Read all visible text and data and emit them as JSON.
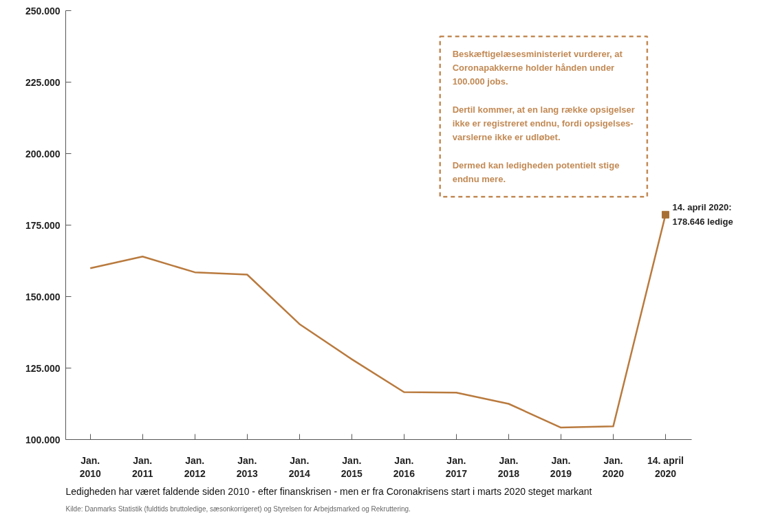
{
  "chart_data": {
    "type": "line",
    "title": "Ledigheden har været faldende siden 2010 - efter finanskrisen - men er fra Coronakrisens start i marts 2020 steget markant",
    "categories": [
      "Jan.\n2010",
      "Jan.\n2011",
      "Jan.\n2012",
      "Jan.\n2013",
      "Jan.\n2014",
      "Jan.\n2015",
      "Jan.\n2016",
      "Jan.\n2017",
      "Jan.\n2018",
      "Jan.\n2019",
      "Jan.\n2020",
      "14. april\n2020"
    ],
    "series": [
      {
        "color": "#b97a3e",
        "marker": "none",
        "values": [
          159900,
          164000,
          158500,
          157700,
          140400,
          128100,
          116600,
          116400,
          112500,
          104200,
          104600,
          178646
        ]
      },
      {
        "type": "scatter",
        "color": "#a86f35",
        "marker": "square",
        "x": [
          "14. april\n2020"
        ],
        "values": [
          178646
        ]
      }
    ],
    "ylim": [
      100000,
      250000
    ],
    "yticks": [
      {
        "value": 100000,
        "label": "100.000"
      },
      {
        "value": 125000,
        "label": "125.000"
      },
      {
        "value": 150000,
        "label": "150.000"
      },
      {
        "value": 175000,
        "label": "175.000"
      },
      {
        "value": 200000,
        "label": "200.000"
      },
      {
        "value": 225000,
        "label": "225.000"
      },
      {
        "value": 250000,
        "label": "250.000"
      }
    ],
    "grid": false,
    "annotations": [
      {
        "text": "14. april 2020:\n178.646 ledige",
        "x": "14. april\n2020",
        "y": 178646
      },
      "Beskæftigelæsesministeriet vurderer, at\nCoronapakkerne holder hånden under\n100.000 jobs.",
      "Dertil kommer, at en lang række opsigelser\nikke er registreret endnu, fordi opsigelses-\nvarslerne ikke er udløbet.",
      "Dermed kan ledigheden potentielt stige\nendnu mere.",
      "Kilde: Danmarks Statistik (fuldtids bruttoledige, sæsonkorrigeret) og Styrelsen for Arbejdsmarked og Rekruttering."
    ]
  }
}
